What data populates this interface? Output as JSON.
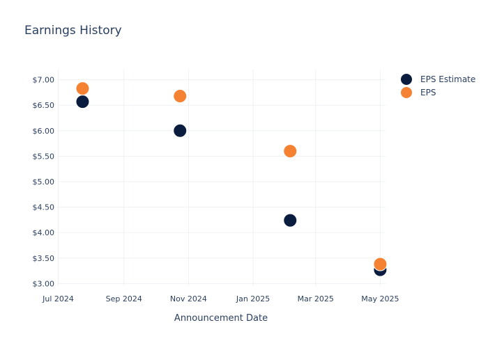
{
  "chart_data": {
    "type": "scatter",
    "title": "Earnings History",
    "xlabel": "Announcement Date",
    "ylabel": "",
    "x_ticks": [
      "Jul 2024",
      "Sep 2024",
      "Nov 2024",
      "Jan 2025",
      "Mar 2025",
      "May 2025"
    ],
    "y_ticks": [
      "$3.00",
      "$3.50",
      "$4.00",
      "$4.50",
      "$5.00",
      "$5.50",
      "$6.00",
      "$6.50",
      "$7.00"
    ],
    "ylim": [
      2.95,
      7.2
    ],
    "xlim": [
      "2024-06-30",
      "2025-05-06"
    ],
    "grid": true,
    "legend_position": "top-right",
    "series": [
      {
        "name": "EPS Estimate",
        "color": "#0b1d3f",
        "points": [
          {
            "x": "2024-07-24",
            "y": 6.57
          },
          {
            "x": "2024-10-24",
            "y": 6.0
          },
          {
            "x": "2025-02-05",
            "y": 4.24
          },
          {
            "x": "2025-05-01",
            "y": 3.27
          }
        ]
      },
      {
        "name": "EPS",
        "color": "#f58233",
        "points": [
          {
            "x": "2024-07-24",
            "y": 6.83
          },
          {
            "x": "2024-10-24",
            "y": 6.68
          },
          {
            "x": "2025-02-05",
            "y": 5.6
          },
          {
            "x": "2025-05-01",
            "y": 3.38
          }
        ]
      }
    ]
  }
}
